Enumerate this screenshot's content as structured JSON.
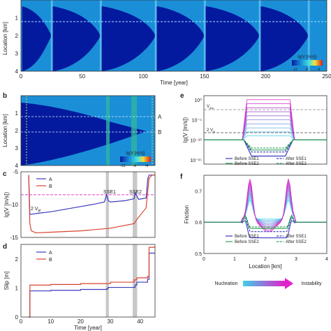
{
  "chart_data": [
    {
      "panel": "a",
      "type": "heatmap",
      "xlabel": "Time [year]",
      "ylabel": "Location [km]",
      "xticks": [
        0,
        50,
        100,
        150,
        200,
        250
      ],
      "yticks": [
        1,
        2,
        3,
        4
      ],
      "xlim": [
        0,
        250
      ],
      "ylim": [
        4,
        0
      ],
      "events_x": [
        25,
        65,
        110,
        150,
        195,
        235
      ],
      "colorbar": {
        "label": "lg(V [m/s])",
        "ticks": [
          -12,
          -8,
          -4
        ]
      }
    },
    {
      "panel": "b",
      "type": "heatmap",
      "ylabel": "Location [km]",
      "yticks": [
        1,
        2,
        3,
        4
      ],
      "xlim": [
        0,
        45
      ],
      "ylim": [
        4,
        0
      ],
      "markers": [
        "A",
        "B"
      ],
      "colorbar": {
        "label": "lg(V [m/s])",
        "ticks": [
          -12,
          -8,
          -4
        ]
      }
    },
    {
      "panel": "c",
      "type": "line",
      "ylabel": "lg(V [m/s])",
      "xlim": [
        0,
        45
      ],
      "ylim": [
        -15,
        -5
      ],
      "yticks": [
        -15,
        -10,
        -5
      ],
      "legend": [
        "A",
        "B"
      ],
      "annotations": [
        "SSE1",
        "SSE2",
        "2 Vₚₗ"
      ],
      "shaded": [
        [
          28.5,
          29.5
        ],
        [
          37.5,
          39
        ]
      ],
      "ref_line": -8.5,
      "series": [
        {
          "name": "A",
          "color": "#3b3bbf",
          "x": [
            2.6,
            3,
            6,
            10,
            15,
            20,
            25,
            28,
            28.7,
            29,
            29.3,
            30,
            35,
            38,
            38.3,
            38.8,
            39.5,
            42,
            42.6,
            43,
            45
          ],
          "y": [
            -5.5,
            -11.5,
            -11.3,
            -11.1,
            -10.7,
            -10.3,
            -9.9,
            -9.6,
            -8.5,
            -8.9,
            -9.4,
            -9.6,
            -9.4,
            -9.1,
            -8.2,
            -8.6,
            -9.2,
            -9.0,
            -6.0,
            -5.5,
            -5.5
          ]
        },
        {
          "name": "B",
          "color": "#d9432f",
          "x": [
            2.6,
            3,
            3.5,
            5,
            10,
            20,
            30,
            38,
            39,
            42,
            43,
            44,
            45
          ],
          "y": [
            -5.5,
            -13,
            -14,
            -14.3,
            -14.2,
            -14.0,
            -13.6,
            -12.9,
            -12.2,
            -10.5,
            -6,
            -5.5,
            -5.5
          ]
        }
      ]
    },
    {
      "panel": "d",
      "type": "line",
      "xlabel": "Time [year]",
      "ylabel": "Slip [m]",
      "xticks": [
        0,
        10,
        20,
        30,
        40
      ],
      "xlim": [
        0,
        45
      ],
      "ylim": [
        0,
        2.5
      ],
      "yticks": [
        0,
        1,
        2
      ],
      "legend": [
        "A",
        "B"
      ],
      "shaded": [
        [
          28.5,
          29.5
        ],
        [
          37.5,
          39
        ]
      ],
      "series": [
        {
          "name": "A",
          "color": "#3b3bbf",
          "x": [
            2.6,
            3,
            10,
            20,
            28.7,
            29.2,
            38.3,
            38.9,
            42.5,
            43,
            45
          ],
          "y": [
            0,
            0.9,
            0.92,
            0.95,
            0.97,
            1.02,
            1.1,
            1.2,
            1.3,
            2.2,
            2.2
          ]
        },
        {
          "name": "B",
          "color": "#d9432f",
          "x": [
            2.6,
            3,
            10,
            20,
            30,
            38,
            38.9,
            42.5,
            43,
            45
          ],
          "y": [
            0,
            1.1,
            1.12,
            1.15,
            1.2,
            1.28,
            1.35,
            1.4,
            2.4,
            2.4
          ]
        }
      ]
    },
    {
      "panel": "e",
      "type": "line",
      "xlabel": "Location [km]",
      "ylabel": "lg(V [m/s])",
      "yticks_label": [
        "10⁰",
        "10⁻⁵",
        "10⁻¹⁰",
        "10⁻¹⁵"
      ],
      "yticks": [
        0,
        -5,
        -10,
        -15
      ],
      "xlim": [
        0,
        4
      ],
      "ylim": [
        -16,
        1
      ],
      "ref_lines": [
        {
          "label": "V_dyn",
          "y": -1.5
        },
        {
          "label": "2 V_pl",
          "y": -8.5
        }
      ],
      "legend": [
        "Before SSE1",
        "After SSE1",
        "Before SSE2",
        "After SSE2"
      ],
      "profile_levels": [
        -9,
        -8,
        -7,
        -6,
        -5,
        -4,
        -3,
        -2,
        -1,
        0
      ]
    },
    {
      "panel": "f",
      "type": "line",
      "xlabel": "Location [km]",
      "ylabel": "Friction",
      "xticks": [
        0,
        1,
        2,
        3,
        4
      ],
      "xlim": [
        0,
        4
      ],
      "ylim": [
        0.5,
        0.75
      ],
      "yticks": [
        0.5,
        0.6,
        0.7
      ],
      "legend": [
        "Before SSE1",
        "After SSE1",
        "Before SSE2",
        "After SSE2"
      ],
      "gradient_labels": [
        "Nucleation",
        "Instability"
      ]
    }
  ],
  "labels": {
    "panel_b": "b",
    "panel_c": "c",
    "panel_d": "d",
    "panel_e": "e",
    "panel_f": "f",
    "loc_a": "Location [km]",
    "time_a": "Time [year]",
    "lg_a": "lg(V [m/s])",
    "loc_b": "Location [km]",
    "lg_b": "lg(V [m/s])",
    "A": "A",
    "B": "B",
    "lgv_c": "lg(V [m/s])",
    "sse1": "SSE1",
    "sse2": "SSE2",
    "vpl_c": "2 V",
    "leg_A": "A",
    "leg_B": "B",
    "slip_d": "Slip [m]",
    "time_d": "Time [year]",
    "lgv_e": "lg(V [m/s])",
    "vdyn": "V",
    "vpl_e": "2 V",
    "before1": "Before SSE1",
    "after1": "After SSE1",
    "before2": "Before SSE2",
    "after2": "After SSE2",
    "friction": "Friction",
    "loc_f": "Location [km]",
    "nucleation": "Nucleation",
    "instability": "Instability"
  },
  "colors": {
    "background_heat": "#1a8fd8",
    "core_heat": "#041a9e",
    "line_A": "#3b3bbf",
    "line_B": "#d9432f",
    "shade": "#c8c8c8",
    "ref_magenta": "#e040d0",
    "gradient_start": "#3fd0e8",
    "gradient_end": "#e020c8"
  }
}
